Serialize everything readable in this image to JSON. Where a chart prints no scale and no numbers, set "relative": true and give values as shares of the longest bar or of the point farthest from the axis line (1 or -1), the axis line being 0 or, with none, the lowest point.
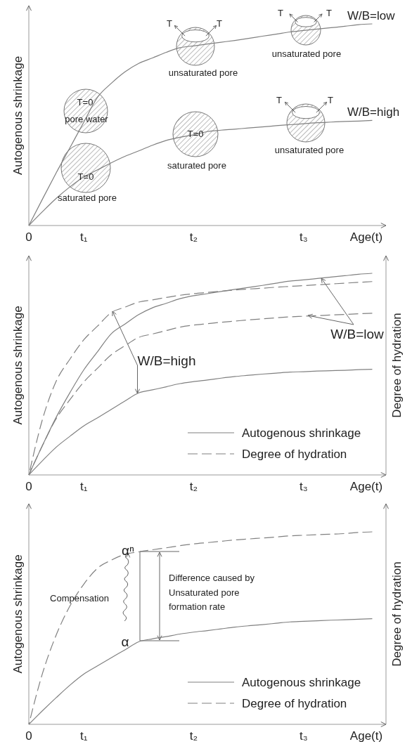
{
  "chart_data": [
    {
      "type": "line",
      "relative": true,
      "xlabel": "Age(t)",
      "ylabel": "Autogenous shrinkage",
      "categories": [
        "0",
        null,
        null,
        null,
        "t₁",
        null,
        null,
        null,
        null,
        null,
        null,
        null,
        "t₂",
        null,
        null,
        null,
        null,
        null,
        null,
        null,
        "t₃",
        null,
        null,
        null,
        null,
        null
      ],
      "legend": "right",
      "line_style": "solid",
      "series": [
        {
          "name": "W/B=low",
          "color": "#808080",
          "values": [
            0,
            0.132,
            0.262,
            0.387,
            0.512,
            0.636,
            0.705,
            0.762,
            0.804,
            0.831,
            0.859,
            0.882,
            0.891,
            0.9,
            0.909,
            0.918,
            0.928,
            0.939,
            0.949,
            0.96,
            0.967,
            0.974,
            0.981,
            0.988,
            0.996,
            1
          ]
        },
        {
          "name": "W/B=high",
          "color": "#808080",
          "values": [
            0,
            0.069,
            0.135,
            0.192,
            0.241,
            0.276,
            0.311,
            0.343,
            0.37,
            0.398,
            0.422,
            0.438,
            0.45,
            0.466,
            0.473,
            0.478,
            0.484,
            0.489,
            0.495,
            0.5,
            0.505,
            0.51,
            0.513,
            0.516,
            0.518,
            0.521
          ]
        }
      ],
      "annotations": [
        "T=0",
        "pore water",
        "T=0",
        "saturated pore",
        "T",
        "T",
        "unsaturated pore",
        "T",
        "T",
        "unsaturated pore",
        "T=0",
        "saturated pore",
        "T",
        "T",
        "unsaturated pore"
      ]
    },
    {
      "type": "line",
      "relative": true,
      "xlabel": "Age(t)",
      "ylabel": "Autogenous shrinkage",
      "y2label": "Degree of hydration",
      "categories": [
        "0",
        null,
        null,
        null,
        "t₁",
        null,
        null,
        null,
        null,
        null,
        null,
        null,
        "t₂",
        null,
        null,
        null,
        null,
        null,
        null,
        null,
        "t₃",
        null,
        null,
        null,
        null,
        null
      ],
      "legend": "bottom right",
      "series": [
        {
          "name": "Autogenous shrinkage",
          "color": "#808080",
          "line_style": "solid",
          "values": [
            0,
            0.147,
            0.287,
            0.409,
            0.521,
            0.611,
            0.7,
            0.748,
            0.795,
            0.829,
            0.851,
            0.874,
            0.889,
            0.899,
            0.91,
            0.92,
            0.93,
            0.94,
            0.951,
            0.961,
            0.967,
            0.974,
            0.981,
            0.988,
            0.995,
            1
          ]
        },
        {
          "color": "#808080",
          "line_style": "solid",
          "values": [
            0,
            0.071,
            0.138,
            0.192,
            0.243,
            0.283,
            0.325,
            0.367,
            0.407,
            0.422,
            0.437,
            0.453,
            0.463,
            0.471,
            0.48,
            0.488,
            0.494,
            0.5,
            0.505,
            0.51,
            0.512,
            0.515,
            0.517,
            0.519,
            0.522,
            0.524
          ]
        },
        {
          "name": "Degree of hydration",
          "color": "#808080",
          "line_style": "dashed",
          "values": [
            0,
            0.277,
            0.466,
            0.575,
            0.67,
            0.738,
            0.805,
            0.832,
            0.857,
            0.868,
            0.88,
            0.891,
            0.899,
            0.905,
            0.911,
            0.917,
            0.922,
            0.926,
            0.931,
            0.935,
            0.939,
            0.943,
            0.947,
            0.951,
            0.955,
            0.959
          ]
        },
        {
          "color": "#808080",
          "line_style": "dashed",
          "values": [
            0,
            0.147,
            0.28,
            0.374,
            0.461,
            0.529,
            0.596,
            0.641,
            0.682,
            0.699,
            0.716,
            0.733,
            0.743,
            0.75,
            0.757,
            0.763,
            0.769,
            0.774,
            0.779,
            0.784,
            0.787,
            0.79,
            0.793,
            0.796,
            0.799,
            0.802
          ]
        }
      ],
      "annotations": [
        "W/B=high",
        "W/B=low"
      ]
    },
    {
      "type": "line",
      "relative": true,
      "xlabel": "Age(t)",
      "ylabel": "Autogenous shrinkage",
      "y2label": "Degree of hydration",
      "categories": [
        "0",
        null,
        null,
        null,
        "t₁",
        null,
        null,
        null,
        null,
        null,
        null,
        null,
        "t₂",
        null,
        null,
        null,
        null,
        null,
        null,
        null,
        "t₃",
        null,
        null,
        null,
        null,
        null
      ],
      "legend": "bottom right",
      "series": [
        {
          "name": "Autogenous shrinkage",
          "color": "#808080",
          "line_style": "solid",
          "values": [
            0,
            0.071,
            0.139,
            0.204,
            0.261,
            0.304,
            0.346,
            0.387,
            0.429,
            0.444,
            0.456,
            0.469,
            0.479,
            0.487,
            0.496,
            0.505,
            0.512,
            0.518,
            0.525,
            0.532,
            0.535,
            0.538,
            0.541,
            0.543,
            0.546,
            0.549
          ]
        },
        {
          "name": "Degree of hydration",
          "color": "#808080",
          "line_style": "dashed",
          "values": [
            0,
            0.266,
            0.465,
            0.616,
            0.728,
            0.811,
            0.853,
            0.883,
            0.896,
            0.907,
            0.917,
            0.928,
            0.937,
            0.944,
            0.951,
            0.958,
            0.963,
            0.968,
            0.973,
            0.979,
            0.982,
            0.985,
            0.988,
            0.991,
            0.997,
            1
          ]
        }
      ],
      "annotations": [
        "αⁿ",
        "α",
        "Compensation",
        "Difference caused by\nUnsaturated pore\nformation rate"
      ]
    }
  ]
}
